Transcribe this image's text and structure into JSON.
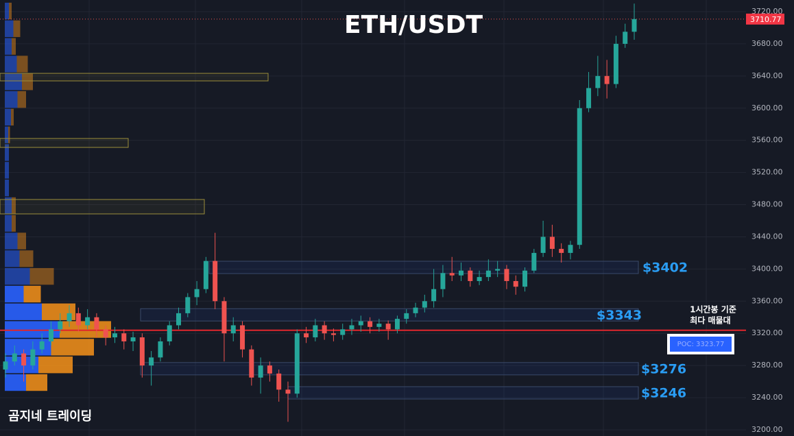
{
  "chart_data": {
    "type": "candlestick",
    "title": "ETH/USDT",
    "watermark": "곰지네 트레이딩",
    "ylim": [
      3200,
      3720
    ],
    "yticks": [
      {
        "value": 3200,
        "label": "3200.00"
      },
      {
        "value": 3240,
        "label": "3240.00"
      },
      {
        "value": 3280,
        "label": "3280.00"
      },
      {
        "value": 3320,
        "label": "3320.00"
      },
      {
        "value": 3360,
        "label": "3360.00"
      },
      {
        "value": 3400,
        "label": "3400.00"
      },
      {
        "value": 3440,
        "label": "3440.00"
      },
      {
        "value": 3480,
        "label": "3480.00"
      },
      {
        "value": 3520,
        "label": "3520.00"
      },
      {
        "value": 3560,
        "label": "3560.00"
      },
      {
        "value": 3600,
        "label": "3600.00"
      },
      {
        "value": 3640,
        "label": "3640.00"
      },
      {
        "value": 3680,
        "label": "3680.00"
      },
      {
        "value": 3720,
        "label": "3720.00"
      }
    ],
    "up_color": "#26a69a",
    "down_color": "#ef5350",
    "open": [
      3275,
      3285,
      3295,
      3280,
      3300,
      3310,
      3325,
      3335,
      3345,
      3330,
      3340,
      3325,
      3315,
      3320,
      3310,
      3315,
      3280,
      3290,
      3310,
      3330,
      3345,
      3365,
      3375,
      3410,
      3360,
      3320,
      3330,
      3300,
      3265,
      3280,
      3270,
      3250,
      3245,
      3320,
      3315,
      3330,
      3320,
      3318,
      3325,
      3330,
      3335,
      3328,
      3332,
      3325,
      3338,
      3345,
      3352,
      3360,
      3375,
      3395,
      3392,
      3398,
      3385,
      3390,
      3398,
      3400,
      3385,
      3378,
      3398,
      3420,
      3440,
      3425,
      3420,
      3430,
      3600,
      3625,
      3640,
      3630,
      3680,
      3695
    ],
    "high": [
      3295,
      3305,
      3300,
      3310,
      3320,
      3335,
      3345,
      3355,
      3352,
      3350,
      3345,
      3330,
      3328,
      3325,
      3322,
      3320,
      3298,
      3315,
      3335,
      3352,
      3370,
      3385,
      3415,
      3445,
      3365,
      3340,
      3335,
      3305,
      3290,
      3285,
      3275,
      3260,
      3325,
      3328,
      3338,
      3335,
      3326,
      3332,
      3338,
      3342,
      3340,
      3338,
      3336,
      3342,
      3350,
      3358,
      3368,
      3400,
      3405,
      3415,
      3408,
      3402,
      3398,
      3412,
      3410,
      3405,
      3392,
      3402,
      3425,
      3460,
      3455,
      3432,
      3435,
      3610,
      3645,
      3665,
      3660,
      3690,
      3705,
      3730
    ],
    "low": [
      3265,
      3280,
      3260,
      3275,
      3295,
      3305,
      3320,
      3328,
      3322,
      3325,
      3315,
      3305,
      3308,
      3300,
      3298,
      3265,
      3255,
      3285,
      3305,
      3325,
      3340,
      3355,
      3370,
      3350,
      3285,
      3310,
      3290,
      3255,
      3245,
      3260,
      3235,
      3210,
      3240,
      3308,
      3310,
      3312,
      3310,
      3312,
      3318,
      3322,
      3320,
      3322,
      3312,
      3320,
      3332,
      3340,
      3346,
      3352,
      3365,
      3385,
      3385,
      3378,
      3380,
      3385,
      3390,
      3375,
      3368,
      3372,
      3395,
      3415,
      3415,
      3408,
      3412,
      3425,
      3595,
      3615,
      3612,
      3625,
      3675,
      3685
    ],
    "close": [
      3285,
      3295,
      3280,
      3300,
      3310,
      3325,
      3335,
      3345,
      3330,
      3340,
      3325,
      3315,
      3320,
      3310,
      3315,
      3280,
      3290,
      3310,
      3330,
      3345,
      3365,
      3375,
      3410,
      3360,
      3320,
      3330,
      3300,
      3265,
      3280,
      3270,
      3250,
      3245,
      3320,
      3315,
      3330,
      3320,
      3318,
      3325,
      3330,
      3335,
      3328,
      3332,
      3325,
      3338,
      3345,
      3352,
      3360,
      3375,
      3395,
      3392,
      3398,
      3385,
      3390,
      3398,
      3400,
      3385,
      3378,
      3398,
      3420,
      3440,
      3425,
      3420,
      3430,
      3600,
      3625,
      3640,
      3630,
      3680,
      3695,
      3710.77
    ],
    "last_price": {
      "value": 3710.77,
      "label": "3710.77"
    },
    "poc": {
      "value": 3323.77,
      "label": "POC: 3323.77"
    },
    "annotation": [
      "1시간봉 기준",
      "최다 매물대"
    ],
    "levels": [
      {
        "value": 3402,
        "label": "$3402"
      },
      {
        "value": 3343,
        "label": "$3343"
      },
      {
        "value": 3276,
        "label": "$3276"
      },
      {
        "value": 3246,
        "label": "$3246"
      }
    ],
    "volume_profile": {
      "bins": [
        3248,
        3270,
        3292,
        3314,
        3336,
        3358,
        3380,
        3402,
        3424,
        3446,
        3468,
        3490,
        3512,
        3534,
        3556,
        3578,
        3600,
        3622,
        3644,
        3666,
        3688,
        3710,
        3732
      ],
      "buy": [
        62,
        98,
        135,
        160,
        108,
        55,
        73,
        43,
        37,
        20,
        20,
        12,
        12,
        12,
        10,
        18,
        37,
        50,
        35,
        20,
        25,
        12
      ],
      "sell": [
        62,
        100,
        125,
        150,
        98,
        50,
        70,
        40,
        25,
        12,
        12,
        0,
        0,
        0,
        5,
        8,
        25,
        32,
        32,
        12,
        20,
        8
      ],
      "buy_color": "#2962ff",
      "sell_color": "#f7931a"
    }
  }
}
